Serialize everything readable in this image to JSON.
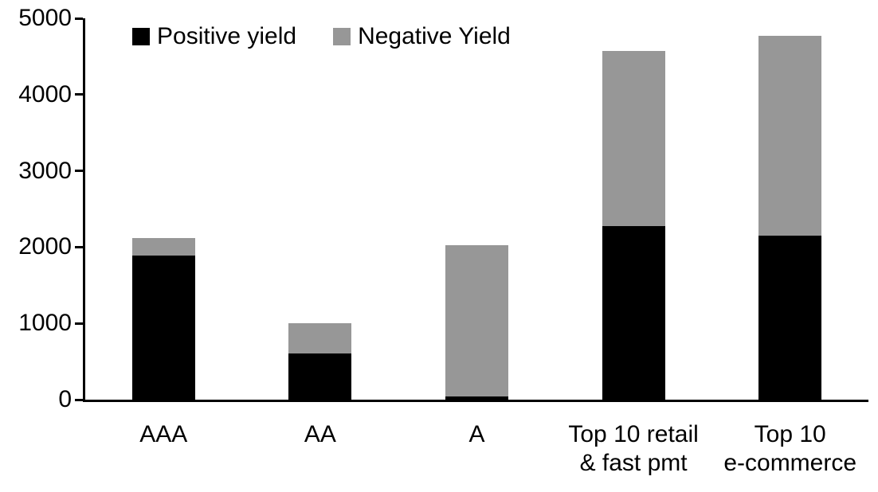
{
  "chart_data": {
    "type": "bar",
    "stacked": true,
    "title": "",
    "xlabel": "",
    "ylabel": "",
    "categories": [
      "AAA",
      "AA",
      "A",
      "Top 10 retail & fast pmt",
      "Top 10 e-commerce"
    ],
    "category_label_lines": [
      [
        "AAA"
      ],
      [
        "AA"
      ],
      [
        "A"
      ],
      [
        "Top 10 retail",
        "& fast pmt"
      ],
      [
        "Top 10",
        "e-commerce"
      ]
    ],
    "series": [
      {
        "name": "Positive yield",
        "color": "#000000",
        "values": [
          1890,
          610,
          45,
          2280,
          2150
        ]
      },
      {
        "name": "Negative Yield",
        "color": "#979797",
        "values": [
          230,
          390,
          1985,
          2290,
          2625
        ]
      }
    ],
    "totals": [
      2120,
      1000,
      2030,
      4570,
      4775
    ],
    "ylim": [
      0,
      5000
    ],
    "yticks": [
      0,
      1000,
      2000,
      3000,
      4000,
      5000
    ],
    "legend_position": "top",
    "grid": false,
    "axis_color": "#000000",
    "background": "#ffffff",
    "text_color": "#000000"
  }
}
